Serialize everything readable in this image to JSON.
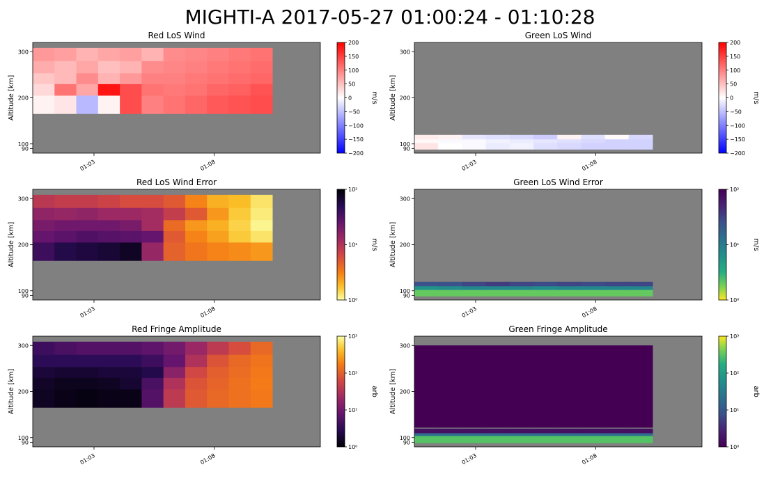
{
  "figure": {
    "title": "MIGHTI-A  2017-05-27 01:00:24 - 01:10:28"
  },
  "colors": {
    "background": "#808080",
    "nodata": "#808080"
  },
  "chart_data": [
    {
      "type": "heatmap",
      "title": "Red LoS Wind",
      "ylabel": "Altitude [km]",
      "xticks": [
        "01:03",
        "01:08"
      ],
      "yticks": [
        90,
        100,
        200,
        300
      ],
      "colorbar": {
        "label": "m/s",
        "cmap": "bwr",
        "scale": "linear",
        "range": [
          -200,
          200
        ],
        "ticks": [
          "200",
          "150",
          "100",
          "50",
          "0",
          "−50",
          "−100",
          "−150",
          "−200"
        ]
      },
      "columns": 11,
      "rows": [
        {
          "altitude": 290,
          "values": [
            80,
            75,
            60,
            70,
            75,
            60,
            90,
            95,
            100,
            105,
            110
          ]
        },
        {
          "altitude": 260,
          "values": [
            65,
            55,
            70,
            50,
            60,
            90,
            95,
            100,
            105,
            110,
            115
          ]
        },
        {
          "altitude": 235,
          "values": [
            45,
            55,
            90,
            60,
            80,
            100,
            100,
            105,
            110,
            115,
            120
          ]
        },
        {
          "altitude": 210,
          "values": [
            30,
            110,
            70,
            185,
            140,
            110,
            105,
            110,
            120,
            125,
            135
          ]
        },
        {
          "altitude": 185,
          "values": [
            10,
            20,
            -55,
            10,
            140,
            100,
            110,
            120,
            130,
            135,
            140
          ]
        }
      ]
    },
    {
      "type": "heatmap",
      "title": "Green LoS Wind",
      "ylabel": "Altitude [km]",
      "xticks": [
        "01:03",
        "01:08"
      ],
      "yticks": [
        90,
        100,
        200,
        300
      ],
      "colorbar": {
        "label": "m/s",
        "cmap": "bwr",
        "scale": "linear",
        "range": [
          -200,
          200
        ],
        "ticks": [
          "200",
          "150",
          "100",
          "50",
          "0",
          "−50",
          "−100",
          "−150",
          "−200"
        ]
      },
      "columns": 10,
      "rows": [
        {
          "altitude": 112,
          "values": [
            15,
            10,
            -20,
            -25,
            -30,
            -40,
            10,
            -25,
            5,
            -30
          ]
        },
        {
          "altitude": 103,
          "values": [
            5,
            -5,
            -5,
            -10,
            -15,
            -20,
            -25,
            -30,
            -35,
            -35
          ]
        },
        {
          "altitude": 95,
          "values": [
            20,
            0,
            -5,
            -15,
            -10,
            -25,
            -30,
            -35,
            -35,
            -35
          ]
        }
      ]
    },
    {
      "type": "heatmap",
      "title": "Red LoS Wind Error",
      "ylabel": "Altitude [km]",
      "xticks": [
        "01:03",
        "01:08"
      ],
      "yticks": [
        90,
        100,
        200,
        300
      ],
      "colorbar": {
        "label": "m/s",
        "cmap": "inferno_r",
        "scale": "log",
        "range": [
          1,
          100
        ],
        "ticks": [
          "10²",
          "10¹",
          "10⁰"
        ]
      },
      "columns": 11,
      "rows": [
        {
          "altitude": 290,
          "values": [
            9,
            8,
            8,
            7,
            6,
            6,
            5,
            3,
            2,
            1.8,
            1.3
          ]
        },
        {
          "altitude": 260,
          "values": [
            15,
            14,
            15,
            13,
            13,
            12,
            8,
            5,
            2.5,
            1.6,
            1.2
          ]
        },
        {
          "altitude": 235,
          "values": [
            20,
            22,
            22,
            22,
            20,
            12,
            4,
            2.5,
            2,
            1.5,
            1.1
          ]
        },
        {
          "altitude": 210,
          "values": [
            25,
            28,
            32,
            30,
            28,
            25,
            5,
            3,
            2.3,
            1.6,
            1.3
          ]
        },
        {
          "altitude": 185,
          "values": [
            40,
            55,
            60,
            65,
            75,
            14,
            4.5,
            3.5,
            3,
            2.8,
            2.5
          ]
        }
      ]
    },
    {
      "type": "heatmap",
      "title": "Green LoS Wind Error",
      "ylabel": "Altitude [km]",
      "xticks": [
        "01:03",
        "01:08"
      ],
      "yticks": [
        90,
        100,
        200,
        300
      ],
      "colorbar": {
        "label": "m/s",
        "cmap": "viridis_r",
        "scale": "log",
        "range": [
          1,
          100
        ],
        "ticks": [
          "10²",
          "10¹",
          "10⁰"
        ]
      },
      "columns": 10,
      "rows": [
        {
          "altitude": 112,
          "values": [
            25,
            25,
            30,
            35,
            30,
            28,
            30,
            28,
            30,
            30
          ]
        },
        {
          "altitude": 103,
          "values": [
            6,
            7,
            8,
            8,
            8,
            7,
            8,
            8,
            8,
            8
          ]
        },
        {
          "altitude": 95,
          "values": [
            2,
            2,
            2,
            2,
            2,
            2,
            2,
            2,
            2,
            2
          ]
        }
      ]
    },
    {
      "type": "heatmap",
      "title": "Red Fringe Amplitude",
      "ylabel": "Altitude [km]",
      "xticks": [
        "01:03",
        "01:08"
      ],
      "yticks": [
        90,
        100,
        200,
        300
      ],
      "colorbar": {
        "label": "arb",
        "cmap": "inferno",
        "scale": "log",
        "range": [
          1,
          1000
        ],
        "ticks": [
          "10³",
          "10²",
          "10¹",
          "10⁰"
        ]
      },
      "columns": 11,
      "rows": [
        {
          "altitude": 290,
          "values": [
            4,
            5,
            6,
            6,
            6,
            7,
            10,
            20,
            40,
            70,
            120
          ]
        },
        {
          "altitude": 260,
          "values": [
            3,
            3,
            3,
            3,
            3,
            4,
            8,
            30,
            80,
            120,
            150
          ]
        },
        {
          "altitude": 235,
          "values": [
            2,
            1.8,
            1.8,
            2,
            2,
            2.5,
            15,
            60,
            100,
            130,
            160
          ]
        },
        {
          "altitude": 210,
          "values": [
            1.6,
            1.4,
            1.4,
            1.5,
            1.8,
            5,
            30,
            80,
            110,
            140,
            170
          ]
        },
        {
          "altitude": 185,
          "values": [
            1.5,
            1.3,
            1.2,
            1.3,
            1.3,
            6,
            40,
            90,
            120,
            140,
            160
          ]
        }
      ]
    },
    {
      "type": "heatmap",
      "title": "Green Fringe Amplitude",
      "ylabel": "Altitude [km]",
      "xticks": [
        "01:03",
        "01:08"
      ],
      "yticks": [
        90,
        100,
        200,
        300
      ],
      "colorbar": {
        "label": "arb",
        "cmap": "viridis",
        "scale": "log",
        "range": [
          1,
          1000
        ],
        "ticks": [
          "10³",
          "10²",
          "10¹",
          "10⁰"
        ]
      },
      "columns": 10,
      "rows": [
        {
          "altitude": 210,
          "values": [
            1,
            1,
            1,
            1,
            1,
            1,
            1,
            1,
            1,
            1
          ]
        },
        {
          "altitude": 112,
          "values": [
            1.5,
            1.5,
            1.5,
            1.5,
            1.5,
            1.5,
            1.5,
            1.5,
            1.5,
            1.5
          ]
        },
        {
          "altitude": 105,
          "values": [
            20,
            20,
            20,
            20,
            20,
            20,
            20,
            20,
            20,
            20
          ]
        },
        {
          "altitude": 96,
          "values": [
            300,
            300,
            300,
            300,
            300,
            300,
            300,
            300,
            300,
            300
          ]
        }
      ]
    }
  ]
}
